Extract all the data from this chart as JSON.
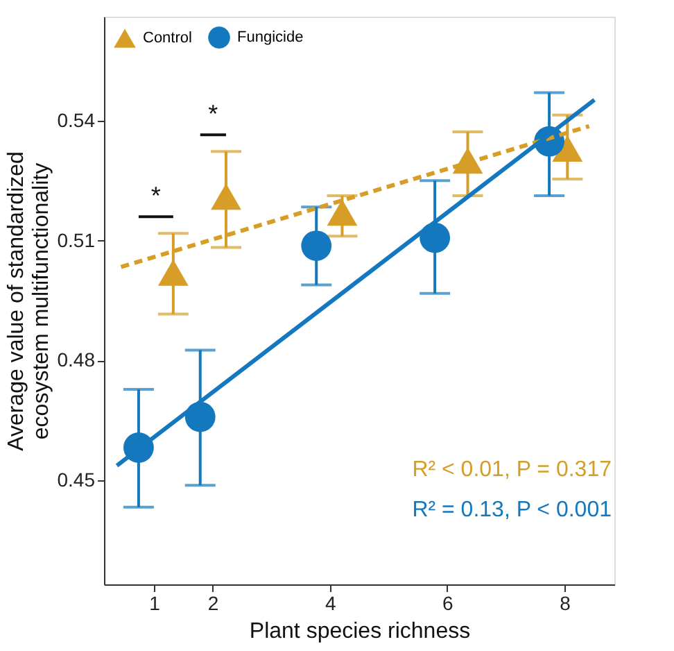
{
  "chart_data": {
    "type": "scatter",
    "xlabel": "Plant species richness",
    "ylabel": "Average value of standardized\necosystem multifunctionality",
    "xlim": [
      0.15,
      8.85
    ],
    "ylim": [
      0.424,
      0.566
    ],
    "xticks": [
      1,
      2,
      4,
      6,
      8
    ],
    "yticks": [
      0.45,
      0.48,
      0.51,
      0.54
    ],
    "grid": false,
    "legend": "top left",
    "series": [
      {
        "name": "Control",
        "marker": "triangle",
        "color": "#d69e27",
        "x": [
          1.33,
          2.23,
          4.21,
          6.35,
          8.05
        ],
        "values": [
          0.502,
          0.521,
          0.517,
          0.53,
          0.533
        ],
        "errors": [
          [
            0.4916,
            0.5118
          ],
          [
            0.5083,
            0.5323
          ],
          [
            0.5111,
            0.5212
          ],
          [
            0.5212,
            0.5372
          ],
          [
            0.5254,
            0.5414
          ]
        ]
      },
      {
        "name": "Fungicide",
        "marker": "circle",
        "color": "#1478be",
        "x": [
          0.74,
          1.79,
          3.77,
          5.79,
          7.74
        ],
        "values": [
          0.4582,
          0.4659,
          0.5087,
          0.5107,
          0.5348
        ],
        "errors": [
          [
            0.4433,
            0.4728
          ],
          [
            0.4488,
            0.4826
          ],
          [
            0.4989,
            0.5184
          ],
          [
            0.4968,
            0.525
          ],
          [
            0.5212,
            0.547
          ]
        ]
      },
      {
        "type": "line",
        "line_style": "dashed",
        "color": "#d69e27",
        "x": [
          0.44,
          8.42
        ],
        "values": [
          0.5034,
          0.5386
        ]
      },
      {
        "type": "line",
        "line_style": "solid",
        "color": "#1478be",
        "x": [
          0.37,
          8.51
        ],
        "values": [
          0.4537,
          0.5452
        ]
      }
    ],
    "annotations": [
      "*",
      "*",
      "R² < 0.01, P = 0.317",
      "R² = 0.13, P < 0.001"
    ]
  }
}
